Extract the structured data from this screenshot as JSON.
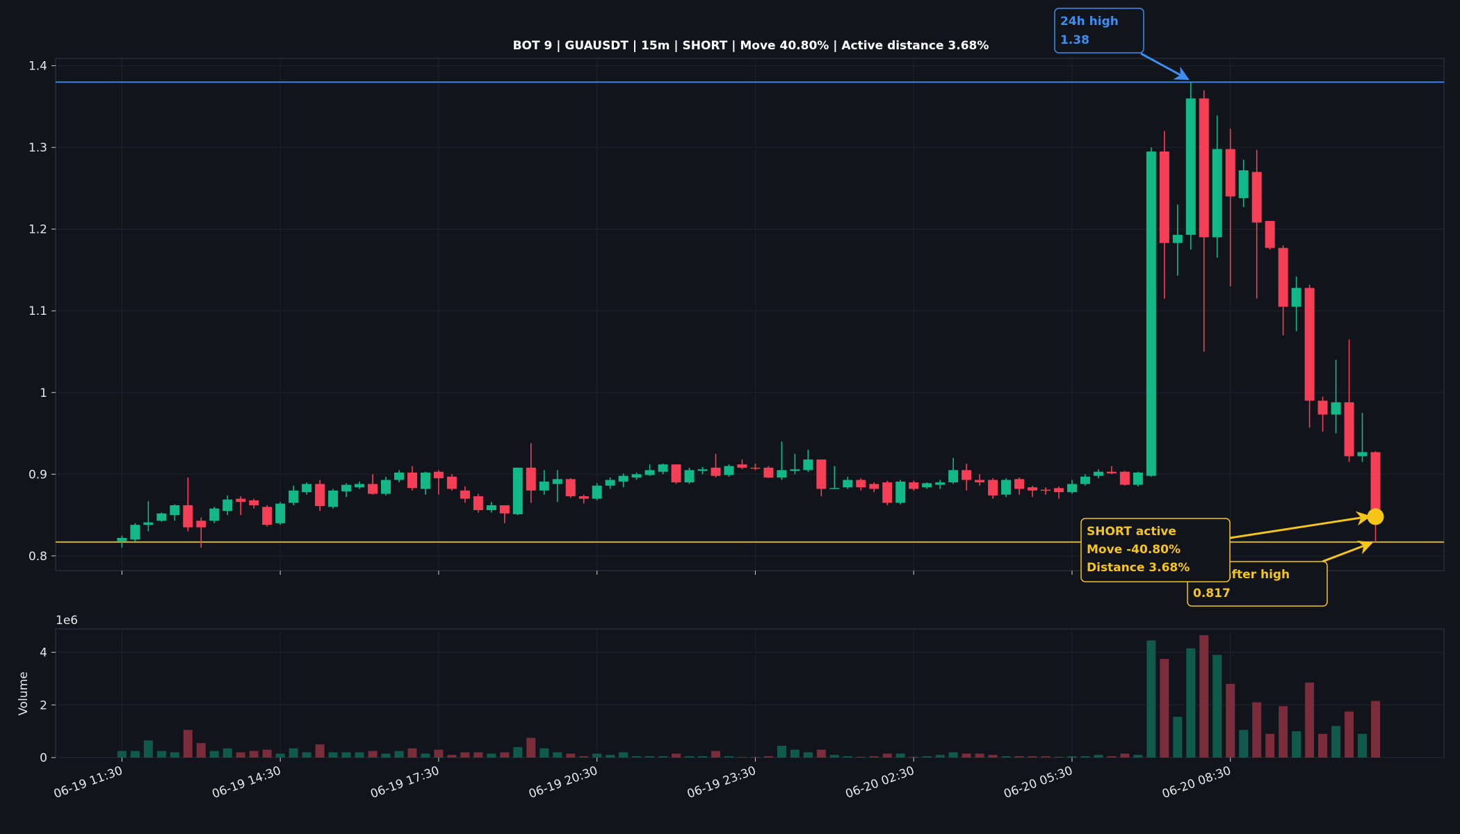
{
  "chart_data": {
    "type": "candlestick",
    "title": "BOT 9 | GUAUSDT | 15m | SHORT | Move 40.80% | Active distance 3.68%",
    "categories": [
      "06-19 11:30",
      null,
      null,
      null,
      null,
      null,
      null,
      null,
      null,
      null,
      null,
      null,
      "06-19 14:30",
      null,
      null,
      null,
      null,
      null,
      null,
      null,
      null,
      null,
      null,
      null,
      "06-19 17:30",
      null,
      null,
      null,
      null,
      null,
      null,
      null,
      null,
      null,
      null,
      null,
      "06-19 20:30",
      null,
      null,
      null,
      null,
      null,
      null,
      null,
      null,
      null,
      null,
      null,
      "06-19 23:30",
      null,
      null,
      null,
      null,
      null,
      null,
      null,
      null,
      null,
      null,
      null,
      "06-20 02:30",
      null,
      null,
      null,
      null,
      null,
      null,
      null,
      null,
      null,
      null,
      null,
      "06-20 05:30",
      null,
      null,
      null,
      null,
      null,
      null,
      null,
      null,
      null,
      null,
      null,
      "06-20 08:30",
      null,
      null,
      null,
      null,
      null,
      null,
      null,
      null,
      null,
      null,
      null
    ],
    "open": [
      0.818,
      0.82,
      0.838,
      0.843,
      0.85,
      0.862,
      0.843,
      0.843,
      0.855,
      0.87,
      0.868,
      0.86,
      0.84,
      0.865,
      0.878,
      0.888,
      0.86,
      0.879,
      0.884,
      0.888,
      0.876,
      0.893,
      0.902,
      0.882,
      0.903,
      0.897,
      0.88,
      0.873,
      0.856,
      0.862,
      0.851,
      0.908,
      0.88,
      0.888,
      0.894,
      0.873,
      0.87,
      0.886,
      0.891,
      0.896,
      0.899,
      0.903,
      0.912,
      0.89,
      0.904,
      0.908,
      0.899,
      0.912,
      0.908,
      0.908,
      0.896,
      0.904,
      0.905,
      0.918,
      0.882,
      0.884,
      0.893,
      0.888,
      0.89,
      0.865,
      0.89,
      0.884,
      0.887,
      0.89,
      0.905,
      0.893,
      0.893,
      0.875,
      0.894,
      0.884,
      0.881,
      0.883,
      0.878,
      0.888,
      0.898,
      0.903,
      0.903,
      0.887,
      0.898,
      1.295,
      1.183,
      1.193,
      1.36,
      1.19,
      1.298,
      1.238,
      1.27,
      1.21,
      1.177,
      1.105,
      1.128,
      0.99,
      0.973,
      0.988,
      0.922,
      0.927
    ],
    "high": [
      0.825,
      0.84,
      0.867,
      0.853,
      0.863,
      0.896,
      0.847,
      0.86,
      0.874,
      0.873,
      0.87,
      0.862,
      0.866,
      0.886,
      0.89,
      0.893,
      0.882,
      0.889,
      0.891,
      0.9,
      0.897,
      0.905,
      0.91,
      0.903,
      0.905,
      0.9,
      0.885,
      0.876,
      0.866,
      0.862,
      0.908,
      0.938,
      0.905,
      0.905,
      0.895,
      0.875,
      0.889,
      0.896,
      0.901,
      0.902,
      0.912,
      0.913,
      0.912,
      0.908,
      0.909,
      0.925,
      0.912,
      0.918,
      0.913,
      0.91,
      0.94,
      0.925,
      0.93,
      0.918,
      0.91,
      0.897,
      0.895,
      0.89,
      0.892,
      0.893,
      0.892,
      0.89,
      0.893,
      0.92,
      0.913,
      0.9,
      0.895,
      0.895,
      0.896,
      0.886,
      0.884,
      0.885,
      0.893,
      0.9,
      0.906,
      0.91,
      0.904,
      0.903,
      1.3,
      1.32,
      1.23,
      1.38,
      1.37,
      1.339,
      1.323,
      1.285,
      1.297,
      1.21,
      1.18,
      1.142,
      1.132,
      0.995,
      1.04,
      1.065,
      0.975,
      0.928
    ],
    "low": [
      0.81,
      0.818,
      0.83,
      0.842,
      0.843,
      0.83,
      0.81,
      0.84,
      0.85,
      0.85,
      0.858,
      0.836,
      0.838,
      0.862,
      0.875,
      0.855,
      0.858,
      0.872,
      0.882,
      0.875,
      0.874,
      0.89,
      0.88,
      0.875,
      0.875,
      0.88,
      0.865,
      0.853,
      0.853,
      0.84,
      0.85,
      0.865,
      0.875,
      0.866,
      0.871,
      0.864,
      0.868,
      0.882,
      0.884,
      0.893,
      0.898,
      0.9,
      0.888,
      0.888,
      0.9,
      0.896,
      0.897,
      0.906,
      0.905,
      0.895,
      0.893,
      0.9,
      0.903,
      0.873,
      0.882,
      0.882,
      0.88,
      0.878,
      0.862,
      0.863,
      0.88,
      0.882,
      0.882,
      0.888,
      0.88,
      0.886,
      0.87,
      0.872,
      0.875,
      0.872,
      0.875,
      0.87,
      0.876,
      0.886,
      0.895,
      0.9,
      0.886,
      0.885,
      0.897,
      1.115,
      1.143,
      1.175,
      1.05,
      1.165,
      1.13,
      1.227,
      1.115,
      1.175,
      1.07,
      1.075,
      0.957,
      0.952,
      0.95,
      0.915,
      0.915,
      0.817
    ],
    "close": [
      0.822,
      0.838,
      0.841,
      0.852,
      0.862,
      0.835,
      0.835,
      0.858,
      0.869,
      0.866,
      0.862,
      0.838,
      0.864,
      0.88,
      0.888,
      0.861,
      0.88,
      0.887,
      0.888,
      0.876,
      0.893,
      0.902,
      0.883,
      0.902,
      0.895,
      0.882,
      0.87,
      0.856,
      0.862,
      0.852,
      0.908,
      0.88,
      0.891,
      0.894,
      0.873,
      0.87,
      0.886,
      0.893,
      0.898,
      0.9,
      0.905,
      0.912,
      0.89,
      0.905,
      0.906,
      0.898,
      0.91,
      0.908,
      0.907,
      0.896,
      0.905,
      0.906,
      0.918,
      0.882,
      0.883,
      0.893,
      0.884,
      0.882,
      0.865,
      0.891,
      0.882,
      0.889,
      0.89,
      0.905,
      0.893,
      0.89,
      0.874,
      0.893,
      0.882,
      0.88,
      0.88,
      0.878,
      0.888,
      0.897,
      0.903,
      0.901,
      0.887,
      0.902,
      1.295,
      1.183,
      1.193,
      1.36,
      1.19,
      1.298,
      1.24,
      1.272,
      1.208,
      1.177,
      1.105,
      1.128,
      0.99,
      0.973,
      0.988,
      0.922,
      0.927,
      0.848
    ],
    "volume": [
      0.25,
      0.25,
      0.65,
      0.25,
      0.2,
      1.05,
      0.55,
      0.25,
      0.35,
      0.2,
      0.25,
      0.3,
      0.15,
      0.35,
      0.2,
      0.5,
      0.2,
      0.2,
      0.2,
      0.25,
      0.15,
      0.25,
      0.35,
      0.15,
      0.3,
      0.1,
      0.2,
      0.2,
      0.15,
      0.2,
      0.4,
      0.75,
      0.35,
      0.2,
      0.15,
      0.05,
      0.15,
      0.1,
      0.2,
      0.05,
      0.05,
      0.05,
      0.15,
      0.05,
      0.05,
      0.25,
      0.05,
      0.02,
      0.02,
      0.05,
      0.45,
      0.3,
      0.2,
      0.3,
      0.1,
      0.05,
      0.03,
      0.05,
      0.15,
      0.15,
      0.03,
      0.05,
      0.1,
      0.2,
      0.15,
      0.15,
      0.1,
      0.05,
      0.05,
      0.05,
      0.05,
      0.03,
      0.05,
      0.05,
      0.1,
      0.05,
      0.15,
      0.1,
      4.45,
      3.75,
      1.55,
      4.15,
      4.65,
      3.9,
      2.8,
      1.05,
      2.1,
      0.9,
      1.95,
      1.0,
      2.85,
      0.9,
      1.2,
      1.75,
      0.9,
      2.15
    ],
    "up_color": "#12b886",
    "down_color": "#f43f56",
    "volume_up_color": "#105a4b",
    "volume_down_color": "#7a2c3a",
    "ylim": [
      0.782,
      1.409
    ],
    "yticks": [
      0.8,
      0.9,
      1,
      1.1,
      1.2,
      1.3,
      1.4
    ],
    "volume_label": "Volume",
    "volume_offset_label": "1e6",
    "volume_ylim": [
      0,
      4.885
    ],
    "volume_yticks": [
      0,
      2,
      4
    ],
    "grid": true,
    "reference_lines": [
      {
        "value": 1.38,
        "color": "#2f80ed"
      },
      {
        "value": 0.817,
        "color": "#d4b21c"
      }
    ],
    "current_marker_color": "#f5c518",
    "annotations": [
      {
        "lines": [
          "24h high",
          "1.38"
        ],
        "color": "#3d8ef0"
      },
      {
        "lines": [
          "Low after high",
          "0.817"
        ],
        "color": "#f5c518"
      },
      {
        "lines": [
          "SHORT active",
          "Move -40.80%",
          "Distance 3.68%"
        ],
        "color": "#f5c518"
      }
    ]
  }
}
